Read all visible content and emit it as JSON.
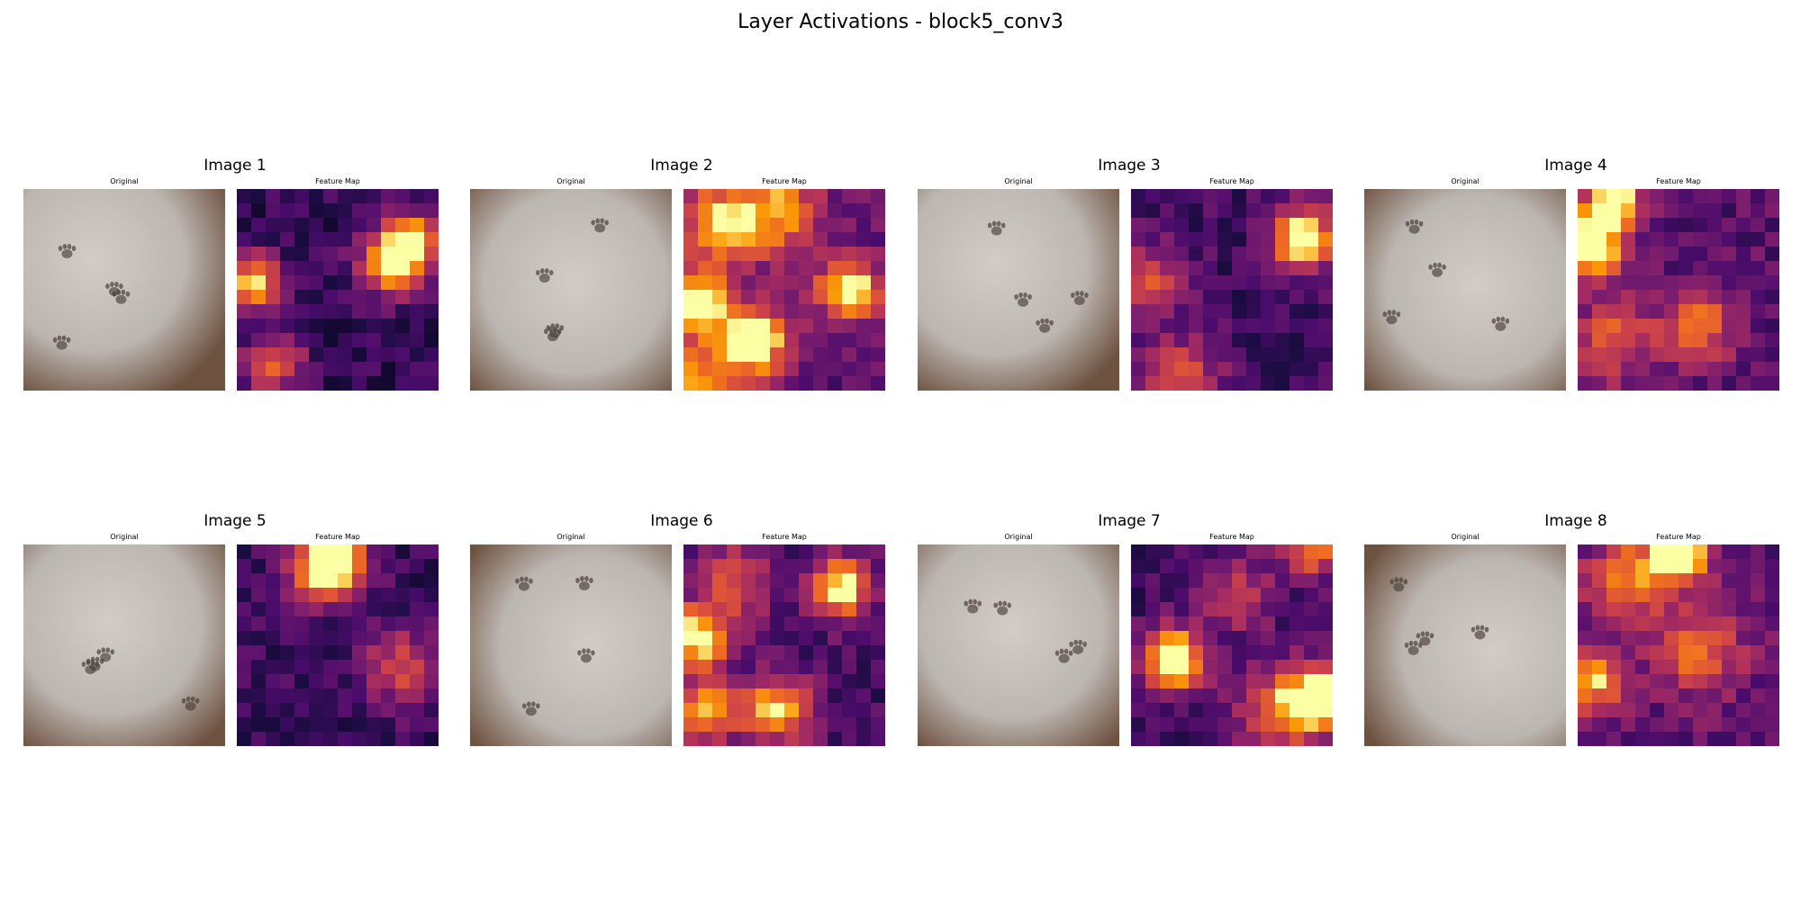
{
  "figure": {
    "title": "Layer Activations - block5_conv3"
  },
  "colormap": "inferno",
  "chart_data": {
    "type": "heatmap",
    "title": "Layer Activations - block5_conv3",
    "grid_size": [
      14,
      14
    ],
    "value_range": [
      0,
      1
    ],
    "panels": [
      {
        "title": "Image 1",
        "original_label": "Original",
        "feature_label": "Feature Map",
        "hotspots": [
          [
            10.5,
            4.5,
            0.95,
            1.6
          ],
          [
            0.5,
            6,
            0.8,
            1.3
          ],
          [
            11.5,
            3,
            0.6,
            1.2
          ],
          [
            2,
            11.5,
            0.5,
            1.5
          ]
        ],
        "base": 0.08
      },
      {
        "title": "Image 2",
        "original_label": "Original",
        "feature_label": "Feature Map",
        "hotspots": [
          [
            4.5,
            10,
            0.85,
            1.6
          ],
          [
            11,
            6.5,
            0.85,
            1.4
          ],
          [
            0.5,
            7.5,
            0.8,
            1.6
          ],
          [
            2,
            2,
            0.6,
            2
          ],
          [
            6,
            1,
            0.55,
            2
          ],
          [
            1,
            13,
            0.55,
            2
          ]
        ],
        "base": 0.2
      },
      {
        "title": "Image 3",
        "original_label": "Original",
        "feature_label": "Feature Map",
        "hotspots": [
          [
            11.5,
            3,
            0.95,
            1.5
          ],
          [
            3,
            12.5,
            0.45,
            1.8
          ],
          [
            0.5,
            6,
            0.4,
            2
          ]
        ],
        "base": 0.12
      },
      {
        "title": "Image 4",
        "original_label": "Original",
        "feature_label": "Feature Map",
        "hotspots": [
          [
            2,
            0.5,
            0.95,
            1.3
          ],
          [
            0.5,
            3.5,
            0.85,
            1.5
          ],
          [
            8,
            9,
            0.45,
            1.8
          ],
          [
            2,
            10,
            0.4,
            2
          ]
        ],
        "base": 0.18
      },
      {
        "title": "Image 5",
        "original_label": "Original",
        "feature_label": "Feature Map",
        "hotspots": [
          [
            6.5,
            0.5,
            0.95,
            1.4
          ],
          [
            11,
            8,
            0.4,
            2
          ],
          [
            5,
            1.5,
            0.5,
            1.5
          ]
        ],
        "base": 0.1
      },
      {
        "title": "Image 6",
        "original_label": "Original",
        "feature_label": "Feature Map",
        "hotspots": [
          [
            10.5,
            2.5,
            0.85,
            1.4
          ],
          [
            0.5,
            6,
            0.85,
            1.4
          ],
          [
            6,
            11,
            0.7,
            1.6
          ],
          [
            1,
            11,
            0.6,
            1.6
          ],
          [
            3,
            2,
            0.4,
            2
          ]
        ],
        "base": 0.14
      },
      {
        "title": "Image 7",
        "original_label": "Original",
        "feature_label": "Feature Map",
        "hotspots": [
          [
            2.5,
            7.5,
            0.95,
            1.5
          ],
          [
            13,
            10,
            0.8,
            1.6
          ],
          [
            10,
            11,
            0.6,
            2
          ],
          [
            7,
            3,
            0.35,
            1.8
          ],
          [
            12,
            0,
            0.6,
            1.2
          ]
        ],
        "base": 0.12
      },
      {
        "title": "Image 8",
        "original_label": "Original",
        "feature_label": "Feature Map",
        "hotspots": [
          [
            6.5,
            0,
            0.95,
            1.4
          ],
          [
            0.5,
            9,
            0.6,
            1.6
          ],
          [
            3,
            2,
            0.5,
            2
          ],
          [
            8,
            7,
            0.45,
            2
          ]
        ],
        "base": 0.2
      }
    ]
  },
  "photo_style": {
    "paper_color": "#bcb6b1",
    "shadow_color": "#6e5240",
    "print_color": "#4a3f38"
  }
}
